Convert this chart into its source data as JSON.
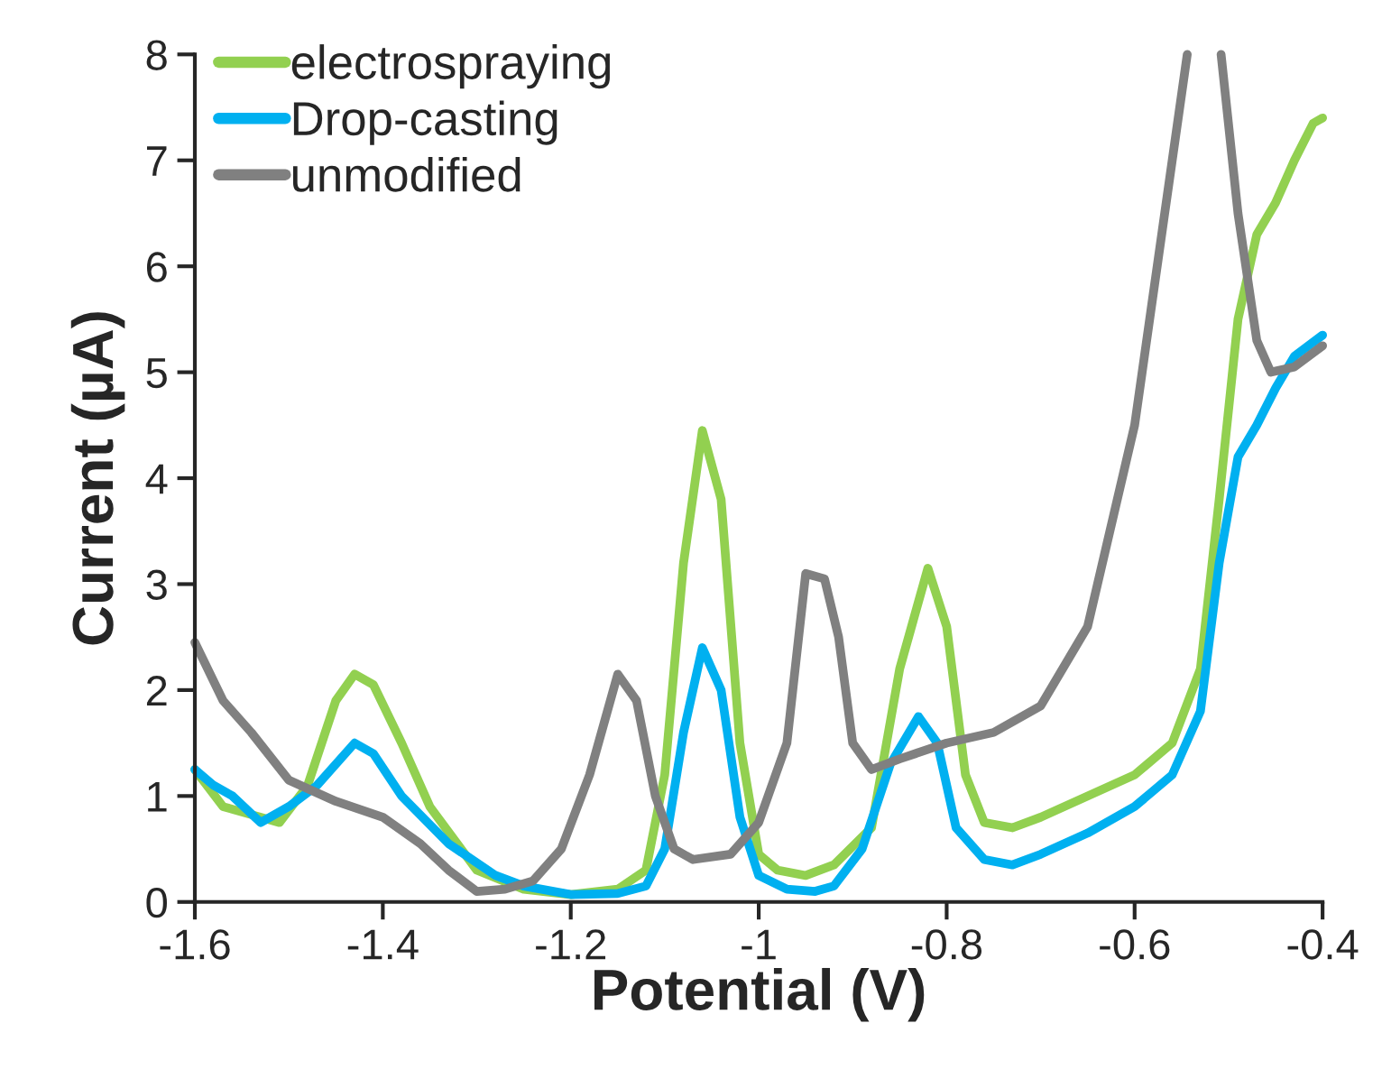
{
  "chart_data": {
    "type": "line",
    "xlabel": "Potential (V)",
    "ylabel": "Current (µA)",
    "xlim": [
      -1.6,
      -0.4
    ],
    "xticks": [
      -1.6,
      -1.4,
      -1.2,
      -1,
      -0.8,
      -0.6,
      -0.4
    ],
    "ylim": [
      0,
      8
    ],
    "yticks": [
      0,
      1,
      2,
      3,
      4,
      5,
      6,
      7,
      8
    ],
    "grid": false,
    "legend": "top left",
    "marker": "none",
    "line_style": "solid",
    "series": [
      {
        "name": "electrospraying",
        "color": "#92d050",
        "x": [
          -1.6,
          -1.57,
          -1.53,
          -1.51,
          -1.48,
          -1.45,
          -1.43,
          -1.41,
          -1.38,
          -1.35,
          -1.3,
          -1.25,
          -1.2,
          -1.15,
          -1.12,
          -1.1,
          -1.08,
          -1.06,
          -1.04,
          -1.02,
          -1.0,
          -0.98,
          -0.95,
          -0.92,
          -0.88,
          -0.85,
          -0.82,
          -0.8,
          -0.78,
          -0.76,
          -0.73,
          -0.7,
          -0.65,
          -0.6,
          -0.56,
          -0.53,
          -0.51,
          -0.49,
          -0.47,
          -0.45,
          -0.43,
          -0.41,
          -0.4
        ],
        "values": [
          1.25,
          0.9,
          0.8,
          0.75,
          1.1,
          1.9,
          2.15,
          2.05,
          1.5,
          0.9,
          0.3,
          0.12,
          0.07,
          0.12,
          0.3,
          1.2,
          3.2,
          4.45,
          3.8,
          1.5,
          0.45,
          0.3,
          0.25,
          0.35,
          0.7,
          2.2,
          3.15,
          2.6,
          1.2,
          0.75,
          0.7,
          0.8,
          1.0,
          1.2,
          1.5,
          2.2,
          3.8,
          5.5,
          6.3,
          6.6,
          7.0,
          7.35,
          7.4
        ]
      },
      {
        "name": "Drop-casting",
        "color": "#00b0f0",
        "x": [
          -1.6,
          -1.58,
          -1.56,
          -1.53,
          -1.5,
          -1.47,
          -1.43,
          -1.41,
          -1.38,
          -1.33,
          -1.28,
          -1.25,
          -1.2,
          -1.15,
          -1.12,
          -1.1,
          -1.08,
          -1.06,
          -1.04,
          -1.02,
          -1.0,
          -0.97,
          -0.94,
          -0.92,
          -0.89,
          -0.86,
          -0.83,
          -0.81,
          -0.79,
          -0.76,
          -0.73,
          -0.7,
          -0.65,
          -0.6,
          -0.56,
          -0.53,
          -0.51,
          -0.49,
          -0.47,
          -0.45,
          -0.43,
          -0.4
        ],
        "values": [
          1.25,
          1.1,
          1.0,
          0.75,
          0.9,
          1.1,
          1.5,
          1.4,
          1.0,
          0.55,
          0.25,
          0.15,
          0.07,
          0.08,
          0.15,
          0.5,
          1.6,
          2.4,
          2.0,
          0.8,
          0.25,
          0.12,
          0.1,
          0.15,
          0.5,
          1.3,
          1.75,
          1.5,
          0.7,
          0.4,
          0.35,
          0.45,
          0.65,
          0.9,
          1.2,
          1.8,
          3.2,
          4.2,
          4.5,
          4.85,
          5.15,
          5.35
        ]
      },
      {
        "name": "unmodified",
        "color": "#808080",
        "x": [
          -1.6,
          -1.57,
          -1.54,
          -1.5,
          -1.45,
          -1.4,
          -1.36,
          -1.33,
          -1.3,
          -1.27,
          -1.24,
          -1.21,
          -1.18,
          -1.15,
          -1.13,
          -1.11,
          -1.09,
          -1.07,
          -1.03,
          -1.0,
          -0.97,
          -0.95,
          -0.93,
          -0.915,
          -0.9,
          -0.88,
          -0.85,
          -0.8,
          -0.75,
          -0.7,
          -0.65,
          -0.6,
          -0.56,
          -0.544,
          -0.525,
          -0.508,
          -0.49,
          -0.47,
          -0.455,
          -0.43,
          -0.4
        ],
        "values": [
          2.45,
          1.9,
          1.6,
          1.15,
          0.95,
          0.8,
          0.55,
          0.3,
          0.1,
          0.12,
          0.2,
          0.5,
          1.2,
          2.15,
          1.9,
          1.0,
          0.5,
          0.4,
          0.45,
          0.75,
          1.5,
          3.1,
          3.05,
          2.5,
          1.5,
          1.25,
          1.35,
          1.5,
          1.6,
          1.85,
          2.6,
          4.5,
          7.0,
          8,
          null,
          8,
          6.5,
          5.3,
          5.0,
          5.05,
          5.25
        ]
      }
    ]
  }
}
